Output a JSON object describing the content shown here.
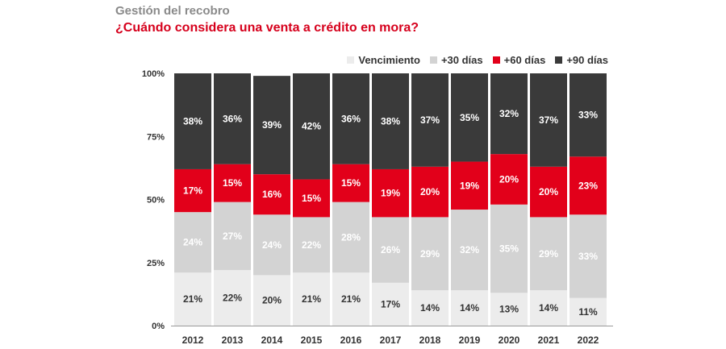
{
  "supertitle": "Gestión del recobro",
  "title": "¿Cuándo considera una venta a crédito en mora?",
  "chart_data": {
    "type": "bar",
    "stacked": true,
    "categories": [
      "2012",
      "2013",
      "2014",
      "2015",
      "2016",
      "2017",
      "2018",
      "2019",
      "2020",
      "2021",
      "2022"
    ],
    "series": [
      {
        "name": "Vencimiento",
        "color": "#ececec",
        "label_color": "#333333",
        "values": [
          21,
          22,
          20,
          21,
          21,
          17,
          14,
          14,
          13,
          14,
          11
        ],
        "labels": [
          "21%",
          "22%",
          "20%",
          "21%",
          "21%",
          "17%",
          "14%",
          "14%",
          "13%",
          "14%",
          "11%"
        ]
      },
      {
        "name": "+30 días",
        "color": "#d3d3d3",
        "label_color": "#ffffff",
        "values": [
          24,
          27,
          24,
          22,
          28,
          26,
          29,
          32,
          35,
          29,
          33
        ],
        "labels": [
          "24%",
          "27%",
          "24%",
          "22%",
          "28%",
          "26%",
          "29%",
          "32%",
          "35%",
          "29%",
          "33%"
        ]
      },
      {
        "name": "+60 días",
        "color": "#e2001a",
        "label_color": "#ffffff",
        "values": [
          17,
          15,
          16,
          15,
          15,
          19,
          20,
          19,
          20,
          20,
          23
        ],
        "labels": [
          "17%",
          "15%",
          "16%",
          "15%",
          "15%",
          "19%",
          "20%",
          "19%",
          "20%",
          "20%",
          "23%"
        ]
      },
      {
        "name": "+90 días",
        "color": "#3a3a3a",
        "label_color": "#ffffff",
        "values": [
          38,
          36,
          39,
          42,
          36,
          38,
          37,
          35,
          32,
          37,
          33
        ],
        "labels": [
          "38%",
          "36%",
          "39%",
          "42%",
          "36%",
          "38%",
          "37%",
          "35%",
          "32%",
          "37%",
          "33%"
        ]
      }
    ],
    "yticks": [
      {
        "value": 0,
        "label": "0%"
      },
      {
        "value": 25,
        "label": "25%"
      },
      {
        "value": 50,
        "label": "50%"
      },
      {
        "value": 75,
        "label": "75%"
      },
      {
        "value": 100,
        "label": "100%"
      }
    ],
    "ylim": [
      0,
      100
    ],
    "xlabel": "",
    "ylabel": "",
    "legend_position": "top-right"
  }
}
